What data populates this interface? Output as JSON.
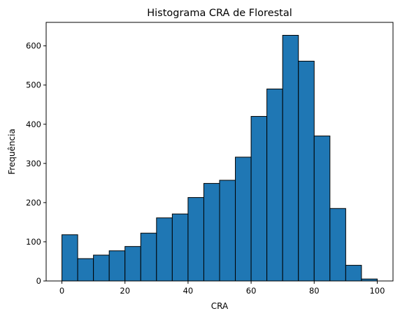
{
  "chart_data": {
    "type": "bar",
    "title": "Histograma CRA de Florestal",
    "xlabel": "CRA",
    "ylabel": "Frequência",
    "bin_edges": [
      0,
      5,
      10,
      15,
      20,
      25,
      30,
      35,
      40,
      45,
      50,
      55,
      60,
      65,
      70,
      75,
      80,
      85,
      90,
      95,
      100
    ],
    "values": [
      118,
      57,
      66,
      77,
      88,
      122,
      161,
      171,
      213,
      249,
      257,
      316,
      420,
      490,
      627,
      561,
      370,
      185,
      40,
      5
    ],
    "xlim": [
      -5,
      105
    ],
    "ylim": [
      0,
      660
    ],
    "xticks": [
      0,
      20,
      40,
      60,
      80,
      100
    ],
    "yticks": [
      0,
      100,
      200,
      300,
      400,
      500,
      600
    ],
    "grid": false,
    "colors": {
      "bar": "#1f77b4",
      "edge": "#000000"
    }
  }
}
